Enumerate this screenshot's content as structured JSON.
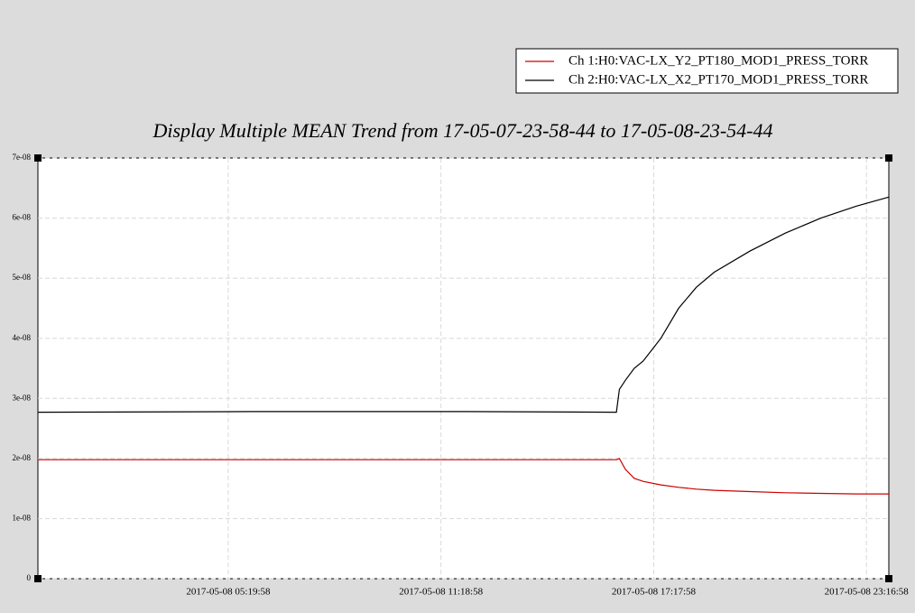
{
  "chart_data": {
    "type": "line",
    "title": "Display Multiple MEAN Trend from 17-05-07-23-58-44 to 17-05-08-23-54-44",
    "x": [
      "2017-05-07 23:58:44",
      "2017-05-08 06:00:00",
      "2017-05-08 12:00:00",
      "2017-05-08 16:15:00",
      "2017-05-08 16:20:00",
      "2017-05-08 16:30:00",
      "2017-05-08 16:45:00",
      "2017-05-08 17:00:00",
      "2017-05-08 17:30:00",
      "2017-05-08 18:00:00",
      "2017-05-08 18:30:00",
      "2017-05-08 19:00:00",
      "2017-05-08 20:00:00",
      "2017-05-08 21:00:00",
      "2017-05-08 22:00:00",
      "2017-05-08 23:00:00",
      "2017-05-08 23:54:44"
    ],
    "series": [
      {
        "name": "Ch 1:H0:VAC-LX_Y2_PT180_MOD1_PRESS_TORR",
        "color": "#cc0000",
        "values": [
          1.98e-08,
          1.98e-08,
          1.98e-08,
          1.98e-08,
          2e-08,
          1.82e-08,
          1.67e-08,
          1.62e-08,
          1.56e-08,
          1.52e-08,
          1.49e-08,
          1.47e-08,
          1.45e-08,
          1.43e-08,
          1.42e-08,
          1.41e-08,
          1.41e-08
        ]
      },
      {
        "name": "Ch 2:H0:VAC-LX_X2_PT170_MOD1_PRESS_TORR",
        "color": "#000000",
        "values": [
          2.77e-08,
          2.78e-08,
          2.78e-08,
          2.77e-08,
          3.15e-08,
          3.3e-08,
          3.5e-08,
          3.62e-08,
          4e-08,
          4.5e-08,
          4.85e-08,
          5.1e-08,
          5.45e-08,
          5.75e-08,
          6e-08,
          6.2e-08,
          6.35e-08
        ]
      }
    ],
    "xlim": [
      "2017-05-07 23:58:44",
      "2017-05-08 23:54:44"
    ],
    "xticks": [
      "2017-05-08 05:19:58",
      "2017-05-08 11:18:58",
      "2017-05-08 17:17:58",
      "2017-05-08 23:16:58"
    ],
    "ylim": [
      0,
      7e-08
    ],
    "yticks": [
      0,
      {
        "value": 1e-08,
        "label": "1e-08"
      },
      {
        "value": 2e-08,
        "label": "2e-08"
      },
      {
        "value": 3e-08,
        "label": "3e-08"
      },
      {
        "value": 4e-08,
        "label": "4e-08"
      },
      {
        "value": 5e-08,
        "label": "5e-08"
      },
      {
        "value": 6e-08,
        "label": "6e-08"
      },
      {
        "value": 7e-08,
        "label": "7e-08"
      }
    ],
    "grid": true
  }
}
